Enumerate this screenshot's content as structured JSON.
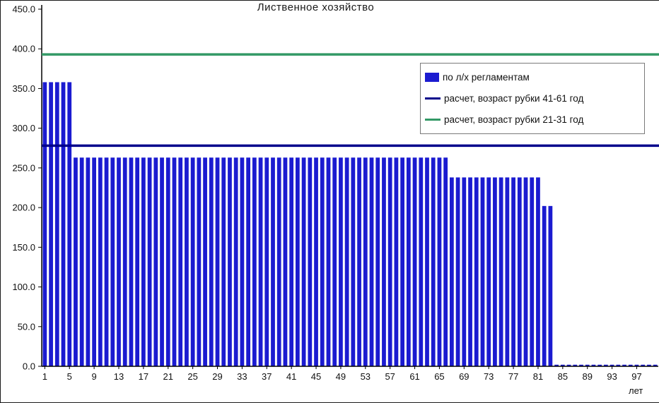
{
  "title": "Лиственное хозяйство",
  "x_axis_title": "лет",
  "colors": {
    "bar": "#1b1bd0",
    "calc_line_41_61": "#00008b",
    "calc_line_21_31": "#339966",
    "axis": "#000000",
    "text": "#111111"
  },
  "legend": {
    "items": [
      {
        "label": "по л/х регламентам",
        "type": "bar",
        "color": "#1b1bd0"
      },
      {
        "label": "расчет, возраст рубки 41-61 год",
        "type": "line",
        "color": "#00008b"
      },
      {
        "label": "расчет, возраст рубки 21-31 год",
        "type": "line",
        "color": "#339966"
      }
    ]
  },
  "chart_data": {
    "type": "bar",
    "title": "Лиственное хозяйство",
    "xlabel": "лет",
    "ylabel": "",
    "ylim": [
      0,
      450
    ],
    "ytick_values": [
      0,
      50,
      100,
      150,
      200,
      250,
      300,
      350,
      400,
      450
    ],
    "xticks": [
      1,
      5,
      9,
      13,
      17,
      21,
      25,
      29,
      33,
      37,
      41,
      45,
      49,
      53,
      57,
      61,
      65,
      69,
      73,
      77,
      81,
      85,
      89,
      93,
      97
    ],
    "grid": false,
    "legend_position": "upper right",
    "categories": [
      1,
      2,
      3,
      4,
      5,
      6,
      7,
      8,
      9,
      10,
      11,
      12,
      13,
      14,
      15,
      16,
      17,
      18,
      19,
      20,
      21,
      22,
      23,
      24,
      25,
      26,
      27,
      28,
      29,
      30,
      31,
      32,
      33,
      34,
      35,
      36,
      37,
      38,
      39,
      40,
      41,
      42,
      43,
      44,
      45,
      46,
      47,
      48,
      49,
      50,
      51,
      52,
      53,
      54,
      55,
      56,
      57,
      58,
      59,
      60,
      61,
      62,
      63,
      64,
      65,
      66,
      67,
      68,
      69,
      70,
      71,
      72,
      73,
      74,
      75,
      76,
      77,
      78,
      79,
      80,
      81,
      82,
      83,
      84,
      85,
      86,
      87,
      88,
      89,
      90,
      91,
      92,
      93,
      94,
      95,
      96,
      97,
      98,
      99,
      100
    ],
    "series": [
      {
        "name": "по л/х регламентам",
        "type": "bar",
        "color": "#1b1bd0",
        "values": [
          358,
          358,
          358,
          358,
          358,
          263,
          263,
          263,
          263,
          263,
          263,
          263,
          263,
          263,
          263,
          263,
          263,
          263,
          263,
          263,
          263,
          263,
          263,
          263,
          263,
          263,
          263,
          263,
          263,
          263,
          263,
          263,
          263,
          263,
          263,
          263,
          263,
          263,
          263,
          263,
          263,
          263,
          263,
          263,
          263,
          263,
          263,
          263,
          263,
          263,
          263,
          263,
          263,
          263,
          263,
          263,
          263,
          263,
          263,
          263,
          263,
          263,
          263,
          263,
          263,
          263,
          238,
          238,
          238,
          238,
          238,
          238,
          238,
          238,
          238,
          238,
          238,
          238,
          238,
          238,
          238,
          202,
          202,
          2,
          2,
          2,
          2,
          2,
          2,
          2,
          2,
          2,
          2,
          2,
          2,
          2,
          2,
          2,
          2,
          2
        ]
      },
      {
        "name": "расчет, возраст рубки 41-61 год",
        "type": "hline",
        "color": "#00008b",
        "value": 278
      },
      {
        "name": "расчет, возраст рубки 21-31 год",
        "type": "hline",
        "color": "#339966",
        "value": 393
      }
    ]
  }
}
